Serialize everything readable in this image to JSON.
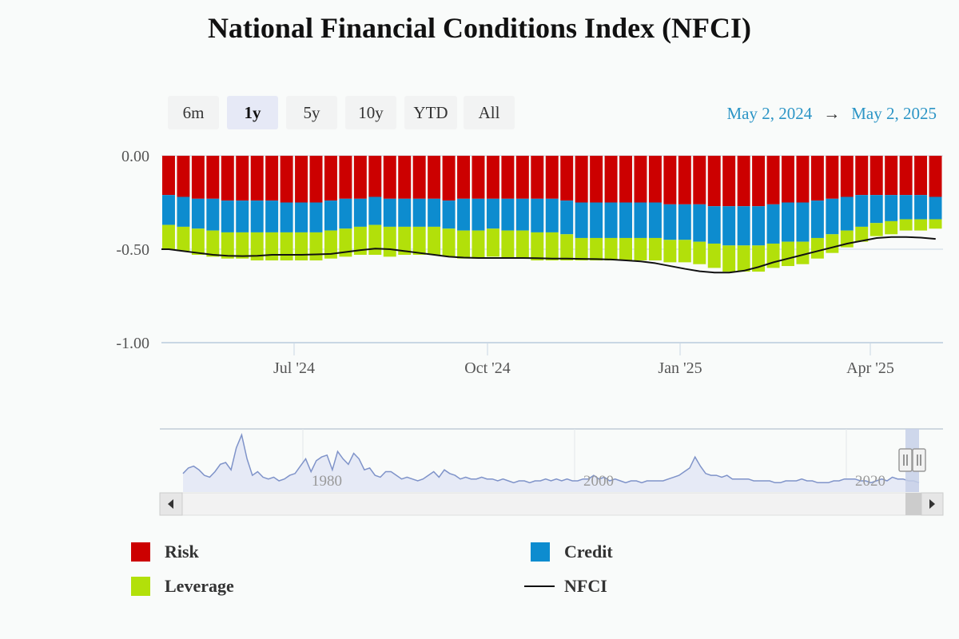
{
  "title": "National Financial Conditions Index (NFCI)",
  "range_buttons": [
    "6m",
    "1y",
    "5y",
    "10y",
    "YTD",
    "All"
  ],
  "range_active": "1y",
  "date_range": {
    "from": "May 2, 2024",
    "arrow": "→",
    "to": "May 2, 2025"
  },
  "colors": {
    "risk": "#cc0000",
    "credit": "#0d8ccf",
    "leverage": "#b2e00a",
    "nfci": "#111111",
    "navigator": "#7f93c9"
  },
  "legend": {
    "risk": "Risk",
    "credit": "Credit",
    "leverage": "Leverage",
    "nfci": "NFCI"
  },
  "chart_data": {
    "type": "bar",
    "stacked": true,
    "ylim": [
      -1.0,
      0.0
    ],
    "y_ticks": [
      "0.00",
      "-0.50",
      "-1.00"
    ],
    "x_ticks": [
      "Jul '24",
      "Oct '24",
      "Jan '25",
      "Apr '25"
    ],
    "series": [
      {
        "name": "Risk",
        "values": [
          -0.21,
          -0.22,
          -0.23,
          -0.23,
          -0.24,
          -0.24,
          -0.24,
          -0.24,
          -0.25,
          -0.25,
          -0.25,
          -0.24,
          -0.23,
          -0.23,
          -0.22,
          -0.23,
          -0.23,
          -0.23,
          -0.23,
          -0.24,
          -0.23,
          -0.23,
          -0.23,
          -0.23,
          -0.23,
          -0.23,
          -0.23,
          -0.24,
          -0.25,
          -0.25,
          -0.25,
          -0.25,
          -0.25,
          -0.25,
          -0.26,
          -0.26,
          -0.26,
          -0.27,
          -0.27,
          -0.27,
          -0.27,
          -0.26,
          -0.25,
          -0.25,
          -0.24,
          -0.23,
          -0.22,
          -0.21,
          -0.21,
          -0.21,
          -0.21,
          -0.21,
          -0.22
        ]
      },
      {
        "name": "Credit",
        "values": [
          -0.16,
          -0.16,
          -0.16,
          -0.17,
          -0.17,
          -0.17,
          -0.17,
          -0.17,
          -0.16,
          -0.16,
          -0.16,
          -0.16,
          -0.16,
          -0.15,
          -0.15,
          -0.15,
          -0.15,
          -0.15,
          -0.15,
          -0.15,
          -0.17,
          -0.17,
          -0.16,
          -0.17,
          -0.17,
          -0.18,
          -0.18,
          -0.18,
          -0.19,
          -0.19,
          -0.19,
          -0.19,
          -0.19,
          -0.19,
          -0.19,
          -0.19,
          -0.2,
          -0.2,
          -0.21,
          -0.21,
          -0.21,
          -0.21,
          -0.21,
          -0.21,
          -0.2,
          -0.19,
          -0.18,
          -0.17,
          -0.15,
          -0.14,
          -0.13,
          -0.13,
          -0.12
        ]
      },
      {
        "name": "Leverage",
        "values": [
          -0.13,
          -0.13,
          -0.14,
          -0.14,
          -0.14,
          -0.14,
          -0.15,
          -0.15,
          -0.15,
          -0.15,
          -0.15,
          -0.15,
          -0.15,
          -0.15,
          -0.16,
          -0.16,
          -0.15,
          -0.15,
          -0.15,
          -0.15,
          -0.15,
          -0.15,
          -0.15,
          -0.15,
          -0.15,
          -0.15,
          -0.15,
          -0.14,
          -0.12,
          -0.12,
          -0.12,
          -0.12,
          -0.12,
          -0.12,
          -0.12,
          -0.12,
          -0.12,
          -0.13,
          -0.14,
          -0.14,
          -0.14,
          -0.13,
          -0.13,
          -0.12,
          -0.11,
          -0.1,
          -0.09,
          -0.08,
          -0.07,
          -0.07,
          -0.06,
          -0.06,
          -0.05
        ]
      },
      {
        "name": "NFCI",
        "type": "line",
        "values": [
          -0.5,
          -0.51,
          -0.52,
          -0.53,
          -0.535,
          -0.537,
          -0.535,
          -0.53,
          -0.53,
          -0.53,
          -0.528,
          -0.525,
          -0.515,
          -0.505,
          -0.497,
          -0.5,
          -0.51,
          -0.52,
          -0.53,
          -0.54,
          -0.545,
          -0.547,
          -0.547,
          -0.547,
          -0.547,
          -0.548,
          -0.55,
          -0.55,
          -0.552,
          -0.553,
          -0.555,
          -0.56,
          -0.565,
          -0.575,
          -0.59,
          -0.605,
          -0.618,
          -0.625,
          -0.625,
          -0.615,
          -0.595,
          -0.57,
          -0.55,
          -0.53,
          -0.51,
          -0.49,
          -0.47,
          -0.455,
          -0.44,
          -0.435,
          -0.435,
          -0.438,
          -0.445
        ]
      }
    ],
    "navigator": {
      "x_ticks": [
        "1980",
        "2000",
        "2020"
      ],
      "values": [
        0.4,
        0.7,
        0.8,
        0.6,
        0.3,
        0.2,
        0.5,
        0.9,
        1.0,
        0.6,
        1.8,
        2.5,
        1.2,
        0.3,
        0.5,
        0.2,
        0.1,
        0.2,
        0.0,
        0.1,
        0.3,
        0.4,
        0.8,
        1.2,
        0.5,
        1.1,
        1.3,
        1.4,
        0.6,
        1.6,
        1.2,
        0.9,
        1.5,
        1.2,
        0.6,
        0.7,
        0.3,
        0.2,
        0.5,
        0.5,
        0.3,
        0.1,
        0.2,
        0.1,
        0.0,
        0.1,
        0.3,
        0.5,
        0.2,
        0.6,
        0.4,
        0.3,
        0.1,
        0.2,
        0.1,
        0.1,
        0.2,
        0.1,
        0.1,
        0.0,
        0.1,
        0.0,
        -0.1,
        0.0,
        0.0,
        -0.1,
        0.0,
        0.0,
        0.1,
        0.0,
        0.1,
        0.0,
        0.1,
        0.0,
        0.0,
        0.1,
        0.1,
        0.3,
        0.1,
        0.2,
        0.0,
        0.1,
        0.0,
        -0.1,
        0.0,
        0.0,
        -0.1,
        0.0,
        0.0,
        0.0,
        0.0,
        0.1,
        0.2,
        0.3,
        0.5,
        0.7,
        1.3,
        0.8,
        0.4,
        0.3,
        0.3,
        0.2,
        0.3,
        0.1,
        0.1,
        0.1,
        0.1,
        0.0,
        0.0,
        0.0,
        0.0,
        -0.1,
        -0.1,
        0.0,
        0.0,
        0.0,
        0.1,
        0.0,
        0.0,
        -0.1,
        -0.1,
        -0.1,
        0.0,
        0.0,
        0.1,
        0.1,
        0.1,
        0.0,
        0.0,
        -0.1,
        0.0,
        0.1,
        0.0,
        0.2,
        0.1,
        0.1,
        0.0,
        0.0,
        -0.1
      ]
    }
  }
}
